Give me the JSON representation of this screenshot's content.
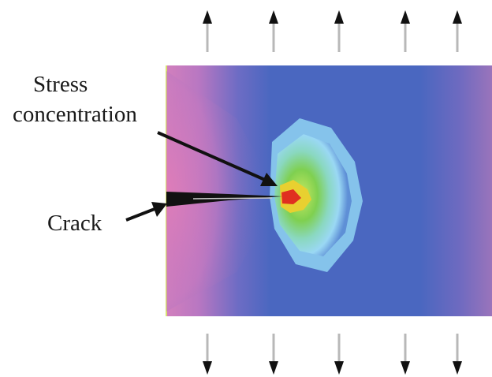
{
  "labels": {
    "stress_line1": "Stress",
    "stress_line2": "concentration",
    "crack": "Crack"
  },
  "colors": {
    "far_field": "#4a67c0",
    "low_stress_edge": "#d884be",
    "elevated": "#8fd8f0",
    "high": "#7fd050",
    "peak": "#e8d030",
    "tip": "#e03020",
    "arrow": "#111111",
    "arrow_shaft_light": "#b8b8b8"
  },
  "icons": {
    "load_arrow_up": "arrow-up-icon",
    "load_arrow_down": "arrow-down-icon",
    "pointer": "leader-arrow-icon"
  }
}
